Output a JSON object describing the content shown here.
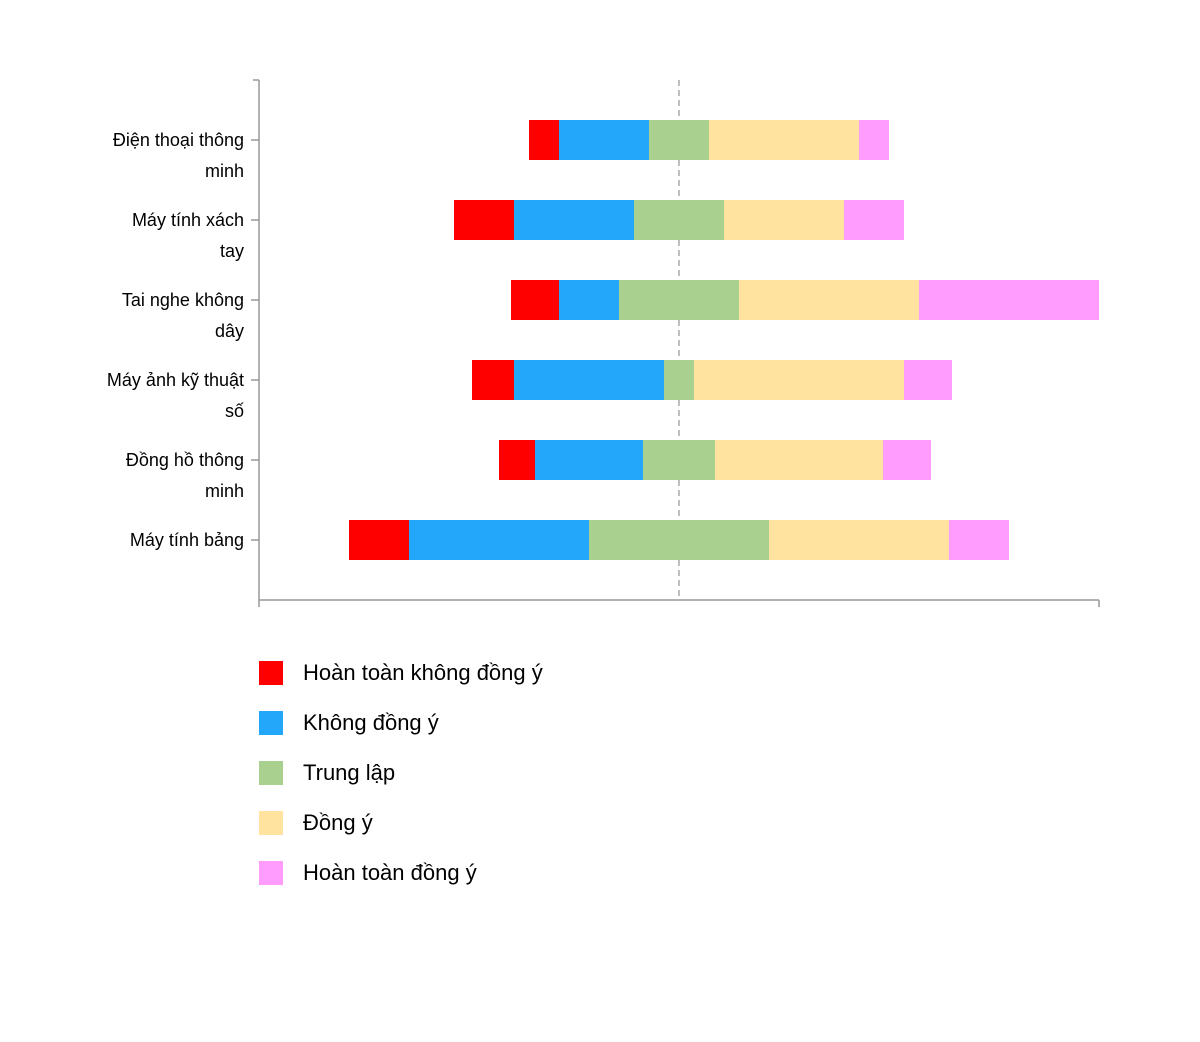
{
  "chart_data": {
    "type": "diverging-bar",
    "categories": [
      "Điện thoại thông minh",
      "Máy tính xách tay",
      "Tai nghe không dây",
      "Máy ảnh kỹ thuật số",
      "Đồng hồ thông minh",
      "Máy tính bảng"
    ],
    "series": [
      {
        "name": "Hoàn toàn không đồng ý",
        "color": "#ff0000",
        "values": [
          5,
          10,
          8,
          7,
          6,
          10
        ]
      },
      {
        "name": "Không đồng ý",
        "color": "#22a7fa",
        "values": [
          15,
          20,
          10,
          25,
          18,
          30
        ]
      },
      {
        "name": "Trung lập",
        "color": "#aad08f",
        "values": [
          10,
          15,
          20,
          5,
          12,
          30
        ]
      },
      {
        "name": "Đồng ý",
        "color": "#ffe39f",
        "values": [
          25,
          20,
          30,
          35,
          28,
          30
        ]
      },
      {
        "name": "Hoàn toàn đồng ý",
        "color": "#ff9cfd",
        "values": [
          5,
          10,
          30,
          8,
          8,
          10
        ]
      }
    ],
    "xlim": [
      -70,
      70
    ]
  }
}
